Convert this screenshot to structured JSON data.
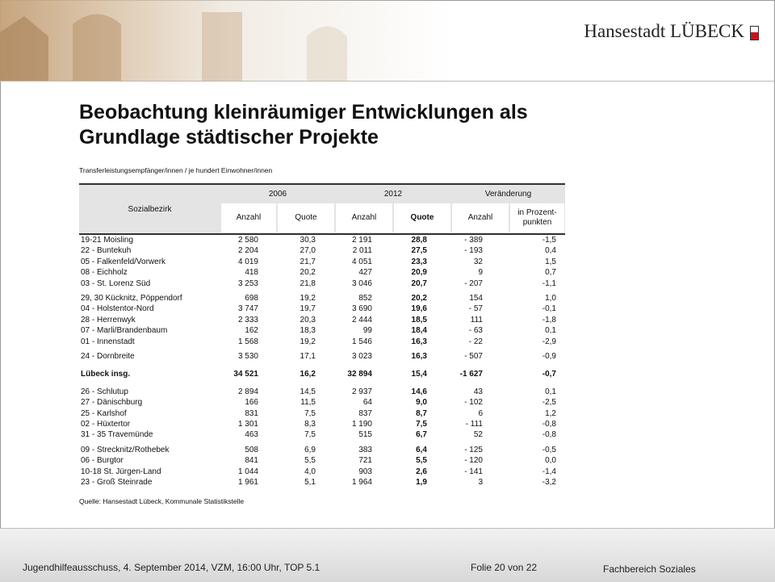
{
  "header": {
    "logo": "Hansestadt LÜBECK"
  },
  "title": "Beobachtung kleinräumiger Entwicklungen als Grundlage städtischer Projekte",
  "subtitle": "Transferleistungsempfänger/innen / je hundert Einwohner/innen",
  "table": {
    "header_row1": [
      "Sozialbezirk",
      "2006",
      "2012",
      "Veränderung"
    ],
    "header_row2": [
      "Anzahl",
      "Quote",
      "Anzahl",
      "Quote",
      "Anzahl",
      "in Prozent- punkten"
    ],
    "groups": [
      {
        "rows": [
          [
            "19-21 Moisling",
            "2 580",
            "30,3",
            "2 191",
            "28,8",
            "- 389",
            "-1,5"
          ],
          [
            "22 - Buntekuh",
            "2 204",
            "27,0",
            "2 011",
            "27,5",
            "- 193",
            "0,4"
          ],
          [
            "05 - Falkenfeld/Vorwerk",
            "4 019",
            "21,7",
            "4 051",
            "23,3",
            "32",
            "1,5"
          ],
          [
            "08 - Eichholz",
            "418",
            "20,2",
            "427",
            "20,9",
            "9",
            "0,7"
          ],
          [
            "03 - St. Lorenz Süd",
            "3 253",
            "21,8",
            "3 046",
            "20,7",
            "- 207",
            "-1,1"
          ]
        ]
      },
      {
        "rows": [
          [
            "29, 30 Kücknitz, Pöppendorf",
            "698",
            "19,2",
            "852",
            "20,2",
            "154",
            "1,0"
          ],
          [
            "04 - Holstentor-Nord",
            "3 747",
            "19,7",
            "3 690",
            "19,6",
            "- 57",
            "-0,1"
          ],
          [
            "28 - Herrenwyk",
            "2 333",
            "20,3",
            "2 444",
            "18,5",
            "111",
            "-1,8"
          ],
          [
            "07 - Marli/Brandenbaum",
            "162",
            "18,3",
            "99",
            "18,4",
            "- 63",
            "0,1"
          ],
          [
            "01 - Innenstadt",
            "1 568",
            "19,2",
            "1 546",
            "16,3",
            "- 22",
            "-2,9"
          ]
        ]
      },
      {
        "rows": [
          [
            "24 - Dornbreite",
            "3 530",
            "17,1",
            "3 023",
            "16,3",
            "- 507",
            "-0,9"
          ]
        ]
      },
      {
        "bold": true,
        "rows": [
          [
            "Lübeck insg.",
            "34 521",
            "16,2",
            "32 894",
            "15,4",
            "-1 627",
            "-0,7"
          ]
        ]
      },
      {
        "rows": [
          [
            "26 - Schlutup",
            "2 894",
            "14,5",
            "2 937",
            "14,6",
            "43",
            "0,1"
          ],
          [
            "27 - Dänischburg",
            "166",
            "11,5",
            "64",
            "9,0",
            "- 102",
            "-2,5"
          ],
          [
            "25 - Karlshof",
            "831",
            "7,5",
            "837",
            "8,7",
            "6",
            "1,2"
          ],
          [
            "02 - Hüxtertor",
            "1 301",
            "8,3",
            "1 190",
            "7,5",
            "- 111",
            "-0,8"
          ],
          [
            "31 - 35 Travemünde",
            "463",
            "7,5",
            "515",
            "6,7",
            "52",
            "-0,8"
          ]
        ]
      },
      {
        "rows": [
          [
            "09 - Strecknitz/Rothebek",
            "508",
            "6,9",
            "383",
            "6,4",
            "- 125",
            "-0,5"
          ],
          [
            "06 - Burgtor",
            "841",
            "5,5",
            "721",
            "5,5",
            "- 120",
            "0,0"
          ],
          [
            "10-18 St. Jürgen-Land",
            "1 044",
            "4,0",
            "903",
            "2,6",
            "- 141",
            "-1,4"
          ],
          [
            "23 - Groß Steinrade",
            "1 961",
            "5,1",
            "1 964",
            "1,9",
            "3",
            "-3,2"
          ]
        ]
      }
    ]
  },
  "source": "Quelle: Hansestadt Lübeck, Kommunale Statistikstelle",
  "footer": {
    "left": "Jugendhilfeausschuss, 4. September 2014, VZM, 16:00 Uhr, TOP 5.1",
    "center": "Folie 20 von 22",
    "right": "Fachbereich Soziales"
  }
}
